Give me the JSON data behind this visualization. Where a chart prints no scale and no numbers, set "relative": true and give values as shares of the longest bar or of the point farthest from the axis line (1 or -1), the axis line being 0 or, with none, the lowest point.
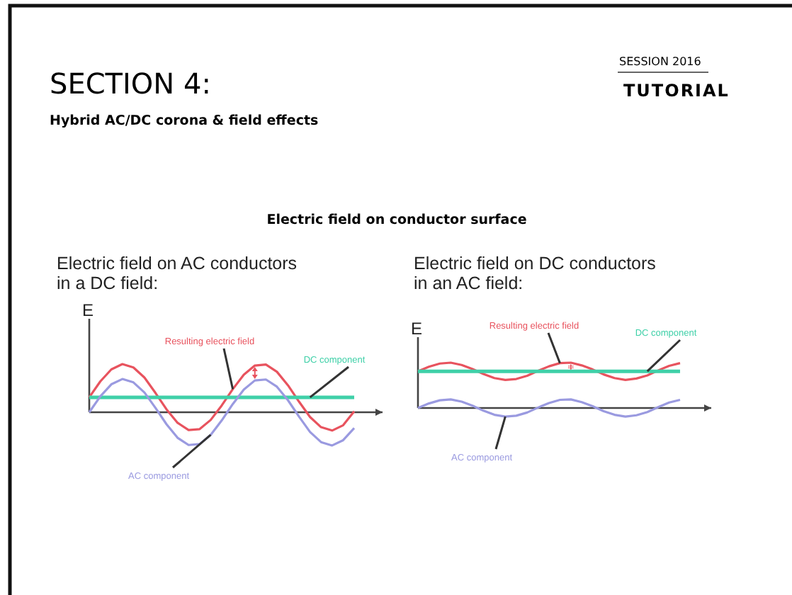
{
  "chart_data": [
    {
      "type": "other",
      "title": "SECTION 4:",
      "subtitle": "Hybrid AC/DC corona & field effects",
      "annotations": [
        "SESSION 2016",
        "TUTORIAL",
        "Electric field on conductor surface"
      ]
    },
    {
      "type": "line",
      "title": "Electric field on AC conductors in a DC field:",
      "ylabel": "E",
      "relative": true,
      "marker": "none",
      "line_style": "solid",
      "categories": [
        null,
        null,
        null,
        null,
        null,
        null,
        null,
        null,
        null,
        null,
        null,
        null,
        null,
        null,
        null,
        null,
        null,
        null,
        null,
        null,
        null,
        null,
        null,
        null,
        null
      ],
      "series": [
        {
          "name": "Resulting electric field",
          "color": "#e8535e",
          "values": [
            0.31,
            0.64,
            0.89,
            1.0,
            0.93,
            0.72,
            0.4,
            0.06,
            -0.22,
            -0.37,
            -0.35,
            -0.16,
            0.14,
            0.48,
            0.78,
            0.97,
            0.99,
            0.84,
            0.56,
            0.22,
            -0.1,
            -0.31,
            -0.38,
            -0.27,
            0.02
          ]
        },
        {
          "name": "DC component",
          "color": "#3fd0a8",
          "values": [
            0.31,
            0.31,
            0.31,
            0.31,
            0.31,
            0.31,
            0.31,
            0.31,
            0.31,
            0.31,
            0.31,
            0.31,
            0.31,
            0.31,
            0.31,
            0.31,
            0.31,
            0.31,
            0.31,
            0.31,
            0.31,
            0.31,
            0.31,
            0.31,
            0.31
          ]
        },
        {
          "name": "AC component",
          "color": "#9a9ae0",
          "values": [
            0,
            0.33,
            0.58,
            0.69,
            0.62,
            0.41,
            0.09,
            -0.25,
            -0.53,
            -0.68,
            -0.66,
            -0.47,
            -0.17,
            0.17,
            0.47,
            0.66,
            0.68,
            0.53,
            0.25,
            -0.09,
            -0.41,
            -0.62,
            -0.69,
            -0.58,
            -0.33
          ]
        }
      ]
    },
    {
      "type": "line",
      "title": "Electric field on DC conductors in an AC field:",
      "ylabel": "E",
      "relative": true,
      "marker": "none",
      "line_style": "solid",
      "categories": [
        null,
        null,
        null,
        null,
        null,
        null,
        null,
        null,
        null,
        null,
        null,
        null,
        null,
        null,
        null,
        null,
        null,
        null,
        null,
        null,
        null,
        null,
        null,
        null,
        null
      ],
      "series": [
        {
          "name": "Resulting electric field",
          "color": "#e8535e",
          "values": [
            0.81,
            0.91,
            0.98,
            1.0,
            0.95,
            0.86,
            0.75,
            0.66,
            0.62,
            0.64,
            0.71,
            0.82,
            0.92,
            0.99,
            1.0,
            0.94,
            0.85,
            0.74,
            0.66,
            0.62,
            0.65,
            0.72,
            0.83,
            0.93,
            0.99
          ]
        },
        {
          "name": "DC component",
          "color": "#3fd0a8",
          "values": [
            0.81,
            0.81,
            0.81,
            0.81,
            0.81,
            0.81,
            0.81,
            0.81,
            0.81,
            0.81,
            0.81,
            0.81,
            0.81,
            0.81,
            0.81,
            0.81,
            0.81,
            0.81,
            0.81,
            0.81,
            0.81,
            0.81,
            0.81,
            0.81,
            0.81
          ]
        },
        {
          "name": "AC component",
          "color": "#9a9ae0",
          "values": [
            0,
            0.1,
            0.17,
            0.19,
            0.14,
            0.05,
            -0.06,
            -0.15,
            -0.19,
            -0.17,
            -0.1,
            0.01,
            0.11,
            0.18,
            0.19,
            0.13,
            0.04,
            -0.07,
            -0.15,
            -0.19,
            -0.16,
            -0.09,
            0.02,
            0.12,
            0.18
          ]
        }
      ]
    }
  ]
}
